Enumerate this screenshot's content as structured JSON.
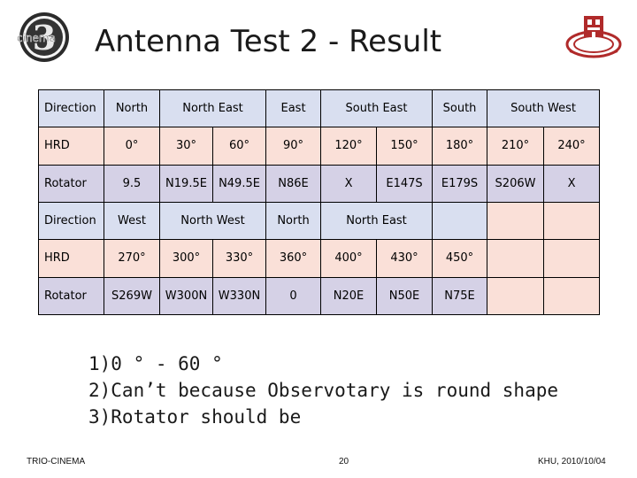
{
  "slide": {
    "title": "Antenna Test 2 - Result",
    "logo_left_text": "cinema",
    "logo_left_numeral": "3"
  },
  "table": {
    "rows": [
      {
        "type": "blue",
        "cells": [
          {
            "text": "Direction",
            "span": 1,
            "label": true
          },
          {
            "text": "North",
            "span": 1
          },
          {
            "text": "North East",
            "span": 2
          },
          {
            "text": "East",
            "span": 1
          },
          {
            "text": "South East",
            "span": 2
          },
          {
            "text": "South",
            "span": 1
          },
          {
            "text": "South West",
            "span": 2
          }
        ]
      },
      {
        "type": "pink",
        "cells": [
          {
            "text": "HRD",
            "span": 1,
            "label": true
          },
          {
            "text": "0°"
          },
          {
            "text": "30°"
          },
          {
            "text": "60°"
          },
          {
            "text": "90°"
          },
          {
            "text": "120°"
          },
          {
            "text": "150°"
          },
          {
            "text": "180°"
          },
          {
            "text": "210°"
          },
          {
            "text": "240°"
          }
        ]
      },
      {
        "type": "purple",
        "cells": [
          {
            "text": "Rotator",
            "span": 1,
            "label": true
          },
          {
            "text": "9.5"
          },
          {
            "text": "N19.5E"
          },
          {
            "text": "N49.5E"
          },
          {
            "text": "N86E"
          },
          {
            "text": "X"
          },
          {
            "text": "E147S"
          },
          {
            "text": "E179S"
          },
          {
            "text": "S206W"
          },
          {
            "text": "X"
          }
        ]
      },
      {
        "type": "blue",
        "cells": [
          {
            "text": "Direction",
            "span": 1,
            "label": true
          },
          {
            "text": "West",
            "span": 1
          },
          {
            "text": "North West",
            "span": 2
          },
          {
            "text": "North",
            "span": 1
          },
          {
            "text": "North East",
            "span": 2
          },
          {
            "text": "",
            "span": 1
          },
          {
            "text": "",
            "span": 1,
            "pink": true
          },
          {
            "text": "",
            "span": 1,
            "pink": true
          }
        ]
      },
      {
        "type": "pink",
        "cells": [
          {
            "text": "HRD",
            "span": 1,
            "label": true
          },
          {
            "text": "270°"
          },
          {
            "text": "300°"
          },
          {
            "text": "330°"
          },
          {
            "text": "360°"
          },
          {
            "text": "400°"
          },
          {
            "text": "430°"
          },
          {
            "text": "450°"
          },
          {
            "text": ""
          },
          {
            "text": ""
          }
        ]
      },
      {
        "type": "purple",
        "cells": [
          {
            "text": "Rotator",
            "span": 1,
            "label": true
          },
          {
            "text": "S269W"
          },
          {
            "text": "W300N"
          },
          {
            "text": "W330N"
          },
          {
            "text": "0"
          },
          {
            "text": "N20E"
          },
          {
            "text": "N50E"
          },
          {
            "text": "N75E"
          },
          {
            "text": "",
            "pink": true
          },
          {
            "text": "",
            "pink": true
          }
        ]
      }
    ]
  },
  "notes": [
    "1)0 ° - 60 °",
    "2)Can’t because Observotary is round shape",
    "3)Rotator should be"
  ],
  "footer": {
    "left": "TRIO-CINEMA",
    "page": "20",
    "right": "KHU, 2010/10/04"
  },
  "colors": {
    "row_blue": "#d9dff0",
    "row_pink": "#fae0d8",
    "row_purple": "#d5d1e6",
    "logo_red": "#b02a2a"
  }
}
